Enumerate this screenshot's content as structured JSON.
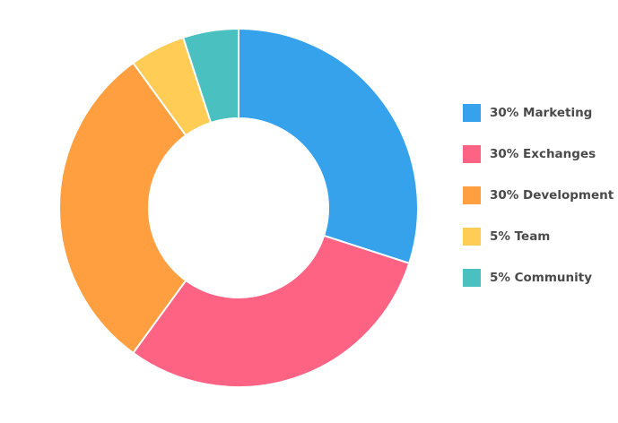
{
  "chart_data": {
    "type": "pie",
    "categories": [
      "30% Marketing",
      "30% Exchanges",
      "30% Development",
      "5% Team",
      "5% Community"
    ],
    "values": [
      30,
      30,
      30,
      5,
      5
    ],
    "colors": [
      "#36a2eb",
      "#ff6384",
      "#ff9f40",
      "#ffcd56",
      "#4bc0c0"
    ],
    "legend": "right"
  }
}
